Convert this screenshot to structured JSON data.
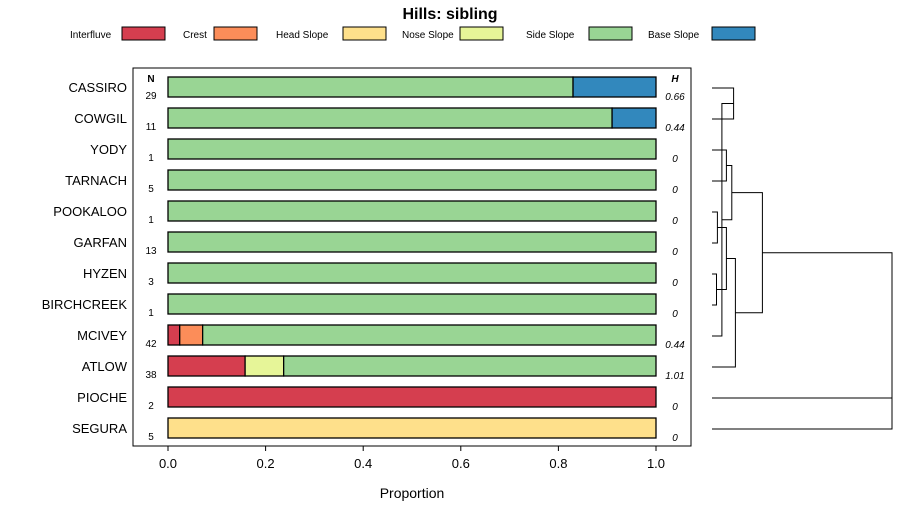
{
  "chart_data": {
    "type": "stacked-bar-horizontal",
    "title": "Hills: sibling",
    "xlabel": "Proportion",
    "ylabel": "",
    "xlim": [
      -0.07,
      1.07
    ],
    "x_ticks": [
      "0.0",
      "0.2",
      "0.4",
      "0.6",
      "0.8",
      "1.0"
    ],
    "x_tick_values": [
      0,
      0.2,
      0.4,
      0.6,
      0.8,
      1.0
    ],
    "n_header": "N",
    "h_header": "H",
    "legend": [
      {
        "name": "Interfluve",
        "color": "#D53E4F"
      },
      {
        "name": "Crest",
        "color": "#FC8D59"
      },
      {
        "name": "Head Slope",
        "color": "#FEE08B"
      },
      {
        "name": "Nose Slope",
        "color": "#E6F598"
      },
      {
        "name": "Side Slope",
        "color": "#99D594"
      },
      {
        "name": "Base Slope",
        "color": "#3288BD"
      }
    ],
    "rows": [
      {
        "label": "CASSIRO",
        "n": "29",
        "h": "0.66",
        "values": [
          0,
          0,
          0,
          0,
          0.83,
          0.17
        ]
      },
      {
        "label": "COWGIL",
        "n": "11",
        "h": "0.44",
        "values": [
          0,
          0,
          0,
          0,
          0.91,
          0.09
        ]
      },
      {
        "label": "YODY",
        "n": "1",
        "h": "0",
        "values": [
          0,
          0,
          0,
          0,
          1.0,
          0
        ]
      },
      {
        "label": "TARNACH",
        "n": "5",
        "h": "0",
        "values": [
          0,
          0,
          0,
          0,
          1.0,
          0
        ]
      },
      {
        "label": "POOKALOO",
        "n": "1",
        "h": "0",
        "values": [
          0,
          0,
          0,
          0,
          1.0,
          0
        ]
      },
      {
        "label": "GARFAN",
        "n": "13",
        "h": "0",
        "values": [
          0,
          0,
          0,
          0,
          1.0,
          0
        ]
      },
      {
        "label": "HYZEN",
        "n": "3",
        "h": "0",
        "values": [
          0,
          0,
          0,
          0,
          1.0,
          0
        ]
      },
      {
        "label": "BIRCHCREEK",
        "n": "1",
        "h": "0",
        "values": [
          0,
          0,
          0,
          0,
          1.0,
          0
        ]
      },
      {
        "label": "MCIVEY",
        "n": "42",
        "h": "0.44",
        "values": [
          0.024,
          0.047,
          0,
          0,
          0.929,
          0
        ]
      },
      {
        "label": "ATLOW",
        "n": "38",
        "h": "1.01",
        "values": [
          0.158,
          0,
          0,
          0.079,
          0.763,
          0
        ]
      },
      {
        "label": "PIOCHE",
        "n": "2",
        "h": "0",
        "values": [
          1.0,
          0,
          0,
          0,
          0,
          0
        ]
      },
      {
        "label": "SEGURA",
        "n": "5",
        "h": "0",
        "values": [
          0,
          0,
          1.0,
          0,
          0,
          0
        ]
      }
    ],
    "dendrogram": {
      "merges": [
        {
          "a": 0,
          "b": 1,
          "height": 0.12
        },
        {
          "a": 2,
          "b": 3,
          "height": 0.08
        },
        {
          "a": 4,
          "b": 5,
          "height": 0.03
        },
        {
          "a": 6,
          "b": 7,
          "height": 0.025
        },
        {
          "a": 12,
          "b": 8,
          "height": 0.055
        },
        {
          "a": 14,
          "b": 15,
          "height": 0.08
        },
        {
          "a": 13,
          "b": 16,
          "height": 0.11
        },
        {
          "a": 17,
          "b": 9,
          "height": 0.13
        },
        {
          "a": 18,
          "b": 19,
          "height": 0.28
        },
        {
          "a": 20,
          "b": 10,
          "height": 1.0
        },
        {
          "a": 21,
          "b": 11,
          "height": 1.0
        }
      ]
    }
  }
}
